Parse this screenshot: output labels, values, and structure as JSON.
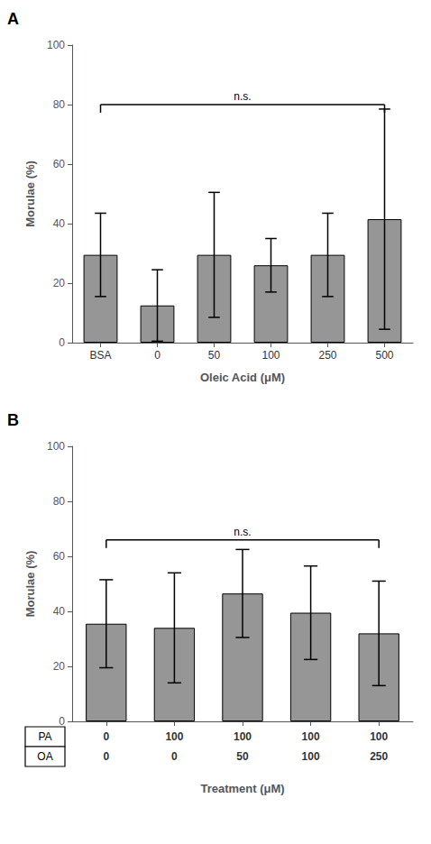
{
  "chart_data": [
    {
      "type": "bar",
      "panel_label": "A",
      "categories": [
        "BSA",
        "0",
        "50",
        "100",
        "250",
        "500"
      ],
      "values": [
        29.5,
        12.5,
        29.5,
        26.0,
        29.5,
        41.5
      ],
      "errors": [
        14.0,
        12.0,
        21.0,
        9.0,
        14.0,
        37.0
      ],
      "color": "#969696",
      "xlabel": "Oleic Acid (μM)",
      "ylabel": "Morulae (%)",
      "ylim": [
        0,
        100
      ],
      "yticks": [
        0,
        20,
        40,
        60,
        80,
        100
      ],
      "grid": false,
      "annotations": [
        {
          "text": "n.s.",
          "y": 80,
          "from": 0,
          "to": 5
        }
      ]
    },
    {
      "type": "bar",
      "panel_label": "B",
      "categories": [
        null,
        null,
        null,
        null,
        null
      ],
      "values": [
        35.5,
        34.0,
        46.5,
        39.5,
        32.0
      ],
      "errors": [
        16.0,
        20.0,
        16.0,
        17.0,
        19.0
      ],
      "color": "#969696",
      "xlabel": "Treatment (μM)",
      "ylabel": "Morulae (%)",
      "ylim": [
        0,
        100
      ],
      "yticks": [
        0,
        20,
        40,
        60,
        80,
        100
      ],
      "grid": false,
      "annotations": [
        {
          "text": "n.s.",
          "y": 66,
          "from": 0,
          "to": 4
        }
      ],
      "table": [
        {
          "label": "PA",
          "cells": [
            "0",
            "100",
            "100",
            "100",
            "100"
          ]
        },
        {
          "label": "OA",
          "cells": [
            "0",
            "0",
            "50",
            "100",
            "250"
          ]
        }
      ]
    }
  ]
}
